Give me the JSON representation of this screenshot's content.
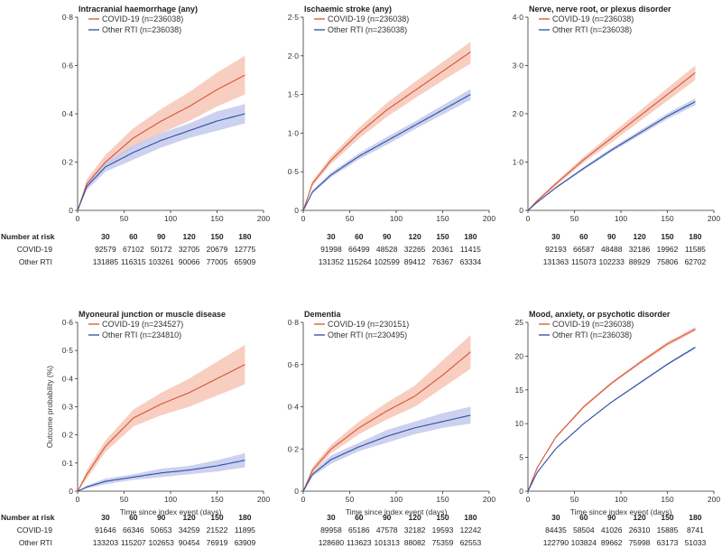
{
  "chart_data": [
    {
      "type": "line",
      "title": "Intracranial haemorrhage (any)",
      "xlabel": "",
      "ylabel": "",
      "xlim": [
        0,
        200
      ],
      "xticks": [
        0,
        50,
        100,
        150,
        200
      ],
      "ylim": [
        0,
        0.8
      ],
      "yticks": [
        "0",
        "0·2",
        "0·4",
        "0·6",
        "0·8"
      ],
      "series": [
        {
          "name": "COVID-19 (n=236038)",
          "color": "#d4543a",
          "band_color": "#f7c6b5",
          "x": [
            0,
            10,
            30,
            60,
            90,
            120,
            150,
            180
          ],
          "y": [
            0,
            0.11,
            0.2,
            0.3,
            0.37,
            0.43,
            0.5,
            0.56
          ],
          "lower": [
            0,
            0.09,
            0.18,
            0.26,
            0.32,
            0.37,
            0.43,
            0.48
          ],
          "upper": [
            0,
            0.13,
            0.23,
            0.34,
            0.42,
            0.49,
            0.57,
            0.64
          ]
        },
        {
          "name": "Other RTI (n=236038)",
          "color": "#2e4fa0",
          "band_color": "#c3c9ec",
          "x": [
            0,
            10,
            30,
            60,
            90,
            120,
            150,
            180
          ],
          "y": [
            0,
            0.1,
            0.18,
            0.24,
            0.29,
            0.33,
            0.37,
            0.4
          ],
          "lower": [
            0,
            0.085,
            0.16,
            0.21,
            0.26,
            0.3,
            0.33,
            0.36
          ],
          "upper": [
            0,
            0.115,
            0.2,
            0.27,
            0.32,
            0.36,
            0.41,
            0.44
          ]
        }
      ],
      "risk_label": "Number at risk",
      "risk_x": [
        "30",
        "60",
        "90",
        "120",
        "150",
        "180"
      ],
      "risk_rows": [
        {
          "label": "COVID-19",
          "values": [
            "92579",
            "67102",
            "50172",
            "32705",
            "20679",
            "12775"
          ]
        },
        {
          "label": "Other RTI",
          "values": [
            "131885",
            "116315",
            "103261",
            "90066",
            "77005",
            "65909"
          ]
        }
      ]
    },
    {
      "type": "line",
      "title": "Ischaemic stroke (any)",
      "xlabel": "",
      "ylabel": "",
      "xlim": [
        0,
        200
      ],
      "xticks": [
        0,
        50,
        100,
        150,
        200
      ],
      "ylim": [
        0,
        2.5
      ],
      "yticks": [
        "0",
        "0·5",
        "1·0",
        "1·5",
        "2·0",
        "2·5"
      ],
      "series": [
        {
          "name": "COVID-19 (n=236038)",
          "color": "#d4543a",
          "band_color": "#f7c6b5",
          "x": [
            0,
            10,
            30,
            60,
            90,
            120,
            150,
            180
          ],
          "y": [
            0,
            0.35,
            0.65,
            1.0,
            1.3,
            1.55,
            1.8,
            2.05
          ],
          "lower": [
            0,
            0.32,
            0.6,
            0.93,
            1.21,
            1.45,
            1.68,
            1.9
          ],
          "upper": [
            0,
            0.38,
            0.7,
            1.07,
            1.39,
            1.66,
            1.92,
            2.18
          ]
        },
        {
          "name": "Other RTI (n=236038)",
          "color": "#2e4fa0",
          "band_color": "#c3c9ec",
          "x": [
            0,
            10,
            30,
            60,
            90,
            120,
            150,
            180
          ],
          "y": [
            0,
            0.24,
            0.46,
            0.7,
            0.9,
            1.1,
            1.3,
            1.5
          ],
          "lower": [
            0,
            0.22,
            0.43,
            0.66,
            0.85,
            1.05,
            1.24,
            1.43
          ],
          "upper": [
            0,
            0.26,
            0.49,
            0.74,
            0.95,
            1.15,
            1.36,
            1.57
          ]
        }
      ],
      "risk_label": "",
      "risk_x": [
        "30",
        "60",
        "90",
        "120",
        "150",
        "180"
      ],
      "risk_rows": [
        {
          "label": "",
          "values": [
            "91998",
            "66499",
            "48528",
            "32265",
            "20361",
            "11415"
          ]
        },
        {
          "label": "",
          "values": [
            "131352",
            "115264",
            "102599",
            "89412",
            "76367",
            "63334"
          ]
        }
      ]
    },
    {
      "type": "line",
      "title": "Nerve, nerve root, or plexus disorder",
      "xlabel": "",
      "ylabel": "",
      "xlim": [
        0,
        200
      ],
      "xticks": [
        0,
        50,
        100,
        150,
        200
      ],
      "ylim": [
        0,
        4.0
      ],
      "yticks": [
        "0",
        "1·0",
        "2·0",
        "3·0",
        "4·0"
      ],
      "series": [
        {
          "name": "COVID-19 (n=236038)",
          "color": "#d4543a",
          "band_color": "#f7c6b5",
          "x": [
            0,
            10,
            30,
            60,
            90,
            120,
            150,
            180
          ],
          "y": [
            0,
            0.2,
            0.55,
            1.05,
            1.5,
            1.95,
            2.4,
            2.85
          ],
          "lower": [
            0,
            0.18,
            0.51,
            0.99,
            1.41,
            1.84,
            2.27,
            2.7
          ],
          "upper": [
            0,
            0.22,
            0.59,
            1.11,
            1.59,
            2.06,
            2.53,
            3.0
          ]
        },
        {
          "name": "Other RTI (n=236038)",
          "color": "#2e4fa0",
          "band_color": "#c3c9ec",
          "x": [
            0,
            10,
            30,
            60,
            90,
            120,
            150,
            180
          ],
          "y": [
            0,
            0.17,
            0.47,
            0.87,
            1.25,
            1.6,
            1.95,
            2.25
          ],
          "lower": [
            0,
            0.16,
            0.45,
            0.84,
            1.21,
            1.55,
            1.89,
            2.18
          ],
          "upper": [
            0,
            0.18,
            0.49,
            0.9,
            1.29,
            1.65,
            2.01,
            2.32
          ]
        }
      ],
      "risk_label": "",
      "risk_x": [
        "30",
        "60",
        "90",
        "120",
        "150",
        "180"
      ],
      "risk_rows": [
        {
          "label": "",
          "values": [
            "92193",
            "66587",
            "48488",
            "32186",
            "19962",
            "11585"
          ]
        },
        {
          "label": "",
          "values": [
            "131363",
            "115073",
            "102233",
            "88929",
            "75806",
            "62702"
          ]
        }
      ]
    },
    {
      "type": "line",
      "title": "Myoneural junction or muscle disease",
      "xlabel": "Time since index event (days)",
      "ylabel": "Outcome probability (%)",
      "xlim": [
        0,
        200
      ],
      "xticks": [
        0,
        50,
        100,
        150,
        200
      ],
      "ylim": [
        0,
        0.6
      ],
      "yticks": [
        "0",
        "0·1",
        "0·2",
        "0·3",
        "0·4",
        "0·5",
        "0·6"
      ],
      "series": [
        {
          "name": "COVID-19 (n=234527)",
          "color": "#d4543a",
          "band_color": "#f7c6b5",
          "x": [
            0,
            10,
            30,
            60,
            90,
            120,
            150,
            180
          ],
          "y": [
            0,
            0.06,
            0.16,
            0.26,
            0.31,
            0.35,
            0.4,
            0.45
          ],
          "lower": [
            0,
            0.045,
            0.14,
            0.23,
            0.27,
            0.3,
            0.34,
            0.38
          ],
          "upper": [
            0,
            0.075,
            0.18,
            0.29,
            0.35,
            0.4,
            0.46,
            0.52
          ]
        },
        {
          "name": "Other RTI (n=234810)",
          "color": "#2e4fa0",
          "band_color": "#c3c9ec",
          "x": [
            0,
            10,
            30,
            60,
            90,
            120,
            150,
            180
          ],
          "y": [
            0,
            0.015,
            0.035,
            0.05,
            0.065,
            0.075,
            0.09,
            0.11
          ],
          "lower": [
            0,
            0.01,
            0.025,
            0.04,
            0.05,
            0.06,
            0.07,
            0.085
          ],
          "upper": [
            0,
            0.02,
            0.045,
            0.06,
            0.08,
            0.09,
            0.11,
            0.135
          ]
        }
      ],
      "risk_label": "Number at risk",
      "risk_x": [
        "30",
        "60",
        "90",
        "120",
        "150",
        "180"
      ],
      "risk_rows": [
        {
          "label": "COVID-19",
          "values": [
            "91646",
            "66346",
            "50653",
            "34259",
            "21522",
            "11895"
          ]
        },
        {
          "label": "Other RTI",
          "values": [
            "133203",
            "115207",
            "102653",
            "90454",
            "76919",
            "63909"
          ]
        }
      ]
    },
    {
      "type": "line",
      "title": "Dementia",
      "xlabel": "Time since index event (days)",
      "ylabel": "",
      "xlim": [
        0,
        200
      ],
      "xticks": [
        0,
        50,
        100,
        150,
        200
      ],
      "ylim": [
        0,
        0.8
      ],
      "yticks": [
        "0",
        "0·2",
        "0·4",
        "0·6",
        "0·8"
      ],
      "series": [
        {
          "name": "COVID-19 (n=230151)",
          "color": "#d4543a",
          "band_color": "#f7c6b5",
          "x": [
            0,
            10,
            30,
            60,
            90,
            120,
            150,
            180
          ],
          "y": [
            0,
            0.1,
            0.2,
            0.3,
            0.38,
            0.45,
            0.55,
            0.66
          ],
          "lower": [
            0,
            0.085,
            0.18,
            0.27,
            0.34,
            0.4,
            0.49,
            0.58
          ],
          "upper": [
            0,
            0.115,
            0.22,
            0.33,
            0.42,
            0.5,
            0.62,
            0.74
          ]
        },
        {
          "name": "Other RTI (n=230495)",
          "color": "#2e4fa0",
          "band_color": "#c3c9ec",
          "x": [
            0,
            10,
            30,
            60,
            90,
            120,
            150,
            180
          ],
          "y": [
            0,
            0.08,
            0.15,
            0.21,
            0.26,
            0.3,
            0.33,
            0.36
          ],
          "lower": [
            0,
            0.07,
            0.13,
            0.19,
            0.23,
            0.27,
            0.3,
            0.32
          ],
          "upper": [
            0,
            0.09,
            0.17,
            0.23,
            0.29,
            0.33,
            0.37,
            0.4
          ]
        }
      ],
      "risk_label": "",
      "risk_x": [
        "30",
        "60",
        "90",
        "120",
        "150",
        "180"
      ],
      "risk_rows": [
        {
          "label": "",
          "values": [
            "89958",
            "65186",
            "47578",
            "32182",
            "19593",
            "12242"
          ]
        },
        {
          "label": "",
          "values": [
            "128680",
            "113623",
            "101313",
            "88082",
            "75359",
            "62553"
          ]
        }
      ]
    },
    {
      "type": "line",
      "title": "Mood, anxiety, or psychotic disorder",
      "xlabel": "Time since index event (days)",
      "ylabel": "",
      "xlim": [
        0,
        200
      ],
      "xticks": [
        0,
        50,
        100,
        150,
        200
      ],
      "ylim": [
        0,
        25
      ],
      "yticks": [
        "0",
        "5",
        "10",
        "15",
        "20",
        "25"
      ],
      "series": [
        {
          "name": "COVID-19 (n=236038)",
          "color": "#d4543a",
          "band_color": "#f7c6b5",
          "x": [
            0,
            10,
            30,
            60,
            90,
            120,
            150,
            180
          ],
          "y": [
            0,
            3.5,
            8.0,
            12.5,
            16.0,
            19.0,
            21.8,
            24.0
          ],
          "lower": [
            0,
            3.4,
            7.85,
            12.3,
            15.8,
            18.75,
            21.5,
            23.7
          ],
          "upper": [
            0,
            3.6,
            8.15,
            12.7,
            16.2,
            19.25,
            22.1,
            24.3
          ]
        },
        {
          "name": "Other RTI (n=236038)",
          "color": "#2e4fa0",
          "band_color": "#c3c9ec",
          "x": [
            0,
            10,
            30,
            60,
            90,
            120,
            150,
            180
          ],
          "y": [
            0,
            2.8,
            6.3,
            10.0,
            13.2,
            16.0,
            18.8,
            21.3
          ],
          "lower": [
            0,
            2.75,
            6.2,
            9.9,
            13.1,
            15.85,
            18.65,
            21.1
          ],
          "upper": [
            0,
            2.85,
            6.4,
            10.1,
            13.3,
            16.15,
            18.95,
            21.5
          ]
        }
      ],
      "risk_label": "",
      "risk_x": [
        "30",
        "60",
        "90",
        "120",
        "150",
        "180"
      ],
      "risk_rows": [
        {
          "label": "",
          "values": [
            "84435",
            "58504",
            "41026",
            "26310",
            "15885",
            "8741"
          ]
        },
        {
          "label": "",
          "values": [
            "122790",
            "103824",
            "89662",
            "75998",
            "63173",
            "51033"
          ]
        }
      ]
    }
  ]
}
